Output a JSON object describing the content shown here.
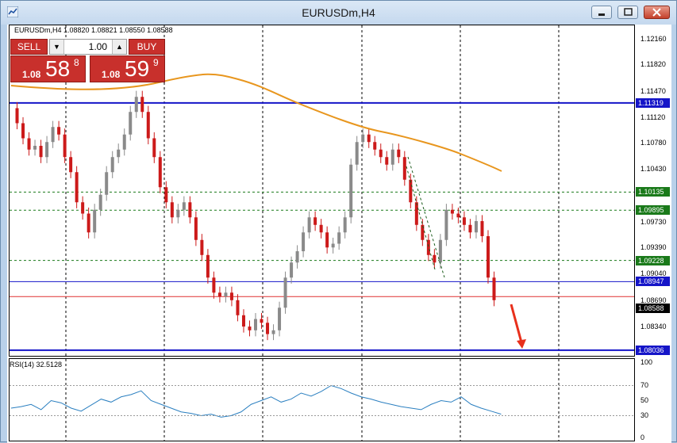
{
  "window": {
    "title": "EURUSDm,H4"
  },
  "trade_panel": {
    "sell_label": "SELL",
    "buy_label": "BUY",
    "lot": "1.00",
    "sell_price": {
      "prefix": "1.08",
      "big": "58",
      "sup": "8"
    },
    "buy_price": {
      "prefix": "1.08",
      "big": "59",
      "sup": "9"
    }
  },
  "chart_info": "EURUSDm,H4  1.08820 1.08821 1.08550 1.08588",
  "rsi_info": "RSI(14) 32.5128",
  "price_axis": {
    "ticks": [
      "1.12160",
      "1.11820",
      "1.11470",
      "1.11120",
      "1.10780",
      "1.10430",
      "1.09730",
      "1.09390",
      "1.09040",
      "1.08690",
      "1.08340"
    ],
    "labels": [
      {
        "text": "1.11319",
        "color": "#1515c8"
      },
      {
        "text": "1.10135",
        "color": "#1a7a1a"
      },
      {
        "text": "1.09895",
        "color": "#1a7a1a"
      },
      {
        "text": "1.09228",
        "color": "#1a7a1a"
      },
      {
        "text": "1.08947",
        "color": "#1515c8"
      },
      {
        "text": "1.08588",
        "color": "#000000"
      },
      {
        "text": "1.08036",
        "color": "#1515c8"
      }
    ]
  },
  "rsi_axis": {
    "ticks": [
      "100",
      "70",
      "50",
      "30",
      "0"
    ]
  },
  "colors": {
    "bull": "#8a8a8a",
    "bear": "#cc1a1a",
    "ma": "#e8961e",
    "rsi": "#2a7fc0",
    "support": "#1515c8",
    "level": "#1a7a1a",
    "arrow": "#e8301c"
  }
}
